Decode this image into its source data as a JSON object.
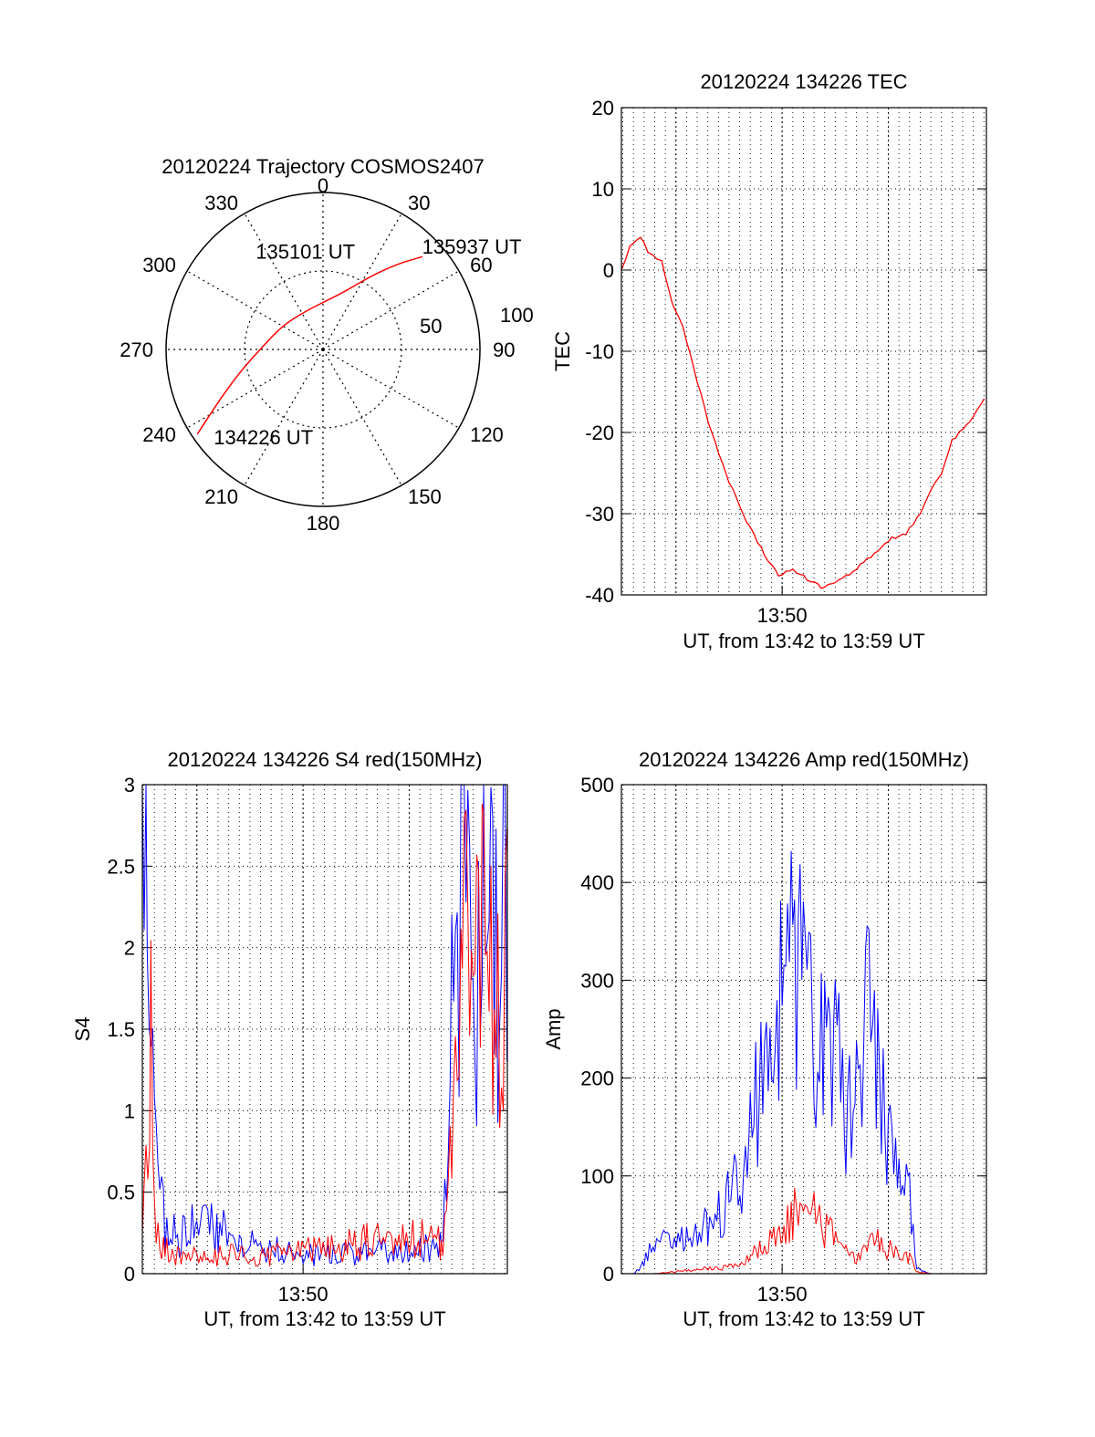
{
  "chart_data": [
    {
      "type": "polar",
      "title": "20120224 Trajectory COSMOS2407",
      "azimuth_labels": [
        "0",
        "30",
        "60",
        "90",
        "120",
        "150",
        "180",
        "210",
        "240",
        "270",
        "300",
        "330"
      ],
      "elevation_ring_labels": [
        "50",
        "100"
      ],
      "elevation_rings": [
        50,
        100
      ],
      "trajectory_color": "#ff0000",
      "trajectory": [
        {
          "az": 236,
          "el": 3
        },
        {
          "az": 240,
          "el": 15
        },
        {
          "az": 246,
          "el": 28
        },
        {
          "az": 256,
          "el": 42
        },
        {
          "az": 272,
          "el": 55
        },
        {
          "az": 300,
          "el": 63
        },
        {
          "az": 332,
          "el": 66
        },
        {
          "az": 0,
          "el": 63
        },
        {
          "az": 20,
          "el": 55
        },
        {
          "az": 33,
          "el": 40
        },
        {
          "az": 41,
          "el": 25
        },
        {
          "az": 47,
          "el": 12
        }
      ],
      "annotations": [
        {
          "text": "134226 UT",
          "az": 229,
          "el": 7
        },
        {
          "text": "135101 UT",
          "az": 349,
          "el": 37
        },
        {
          "text": "135937 UT",
          "az": 46,
          "el": 11
        }
      ]
    },
    {
      "type": "line",
      "title": "20120224 134226 TEC",
      "xlabel": "UT, from 13:42 to 13:59 UT",
      "ylabel": "TEC",
      "ylim": [
        -40,
        20
      ],
      "yticks": [
        20,
        10,
        0,
        -10,
        -20,
        -30,
        -40
      ],
      "xlim": [
        "13:42:26",
        "13:59:37"
      ],
      "xticks": [
        "13:50"
      ],
      "grid": true,
      "series": [
        {
          "color": "#ff0000",
          "x": [
            "13:42:26",
            "13:42:50",
            "13:43:20",
            "13:43:45",
            "13:44:20",
            "13:44:50",
            "13:45:20",
            "13:45:50",
            "13:46:40",
            "13:47:30",
            "13:48:20",
            "13:49:10",
            "13:49:50",
            "13:50:30",
            "13:51:10",
            "13:51:50",
            "13:52:30",
            "13:53:10",
            "13:53:50",
            "13:54:30",
            "13:55:10",
            "13:55:50",
            "13:56:30",
            "13:57:00",
            "13:57:30",
            "13:58:00",
            "13:58:30",
            "13:59:00",
            "13:59:37"
          ],
          "y": [
            0,
            3,
            4,
            2,
            1,
            -4,
            -7,
            -12,
            -20,
            -26,
            -31,
            -35,
            -37.5,
            -37,
            -38,
            -39,
            -38.5,
            -37.5,
            -36,
            -34.5,
            -33,
            -32.5,
            -30,
            -27,
            -25,
            -21,
            -19.5,
            -18,
            -15.5
          ]
        }
      ]
    },
    {
      "type": "line",
      "title": "20120224 134226 S4 red(150MHz)",
      "xlabel": "UT, from 13:42 to 13:59 UT",
      "ylabel": "S4",
      "ylim": [
        0,
        3
      ],
      "yticks": [
        3,
        2.5,
        2,
        1.5,
        1,
        0.5,
        0
      ],
      "xlim": [
        "13:42:26",
        "13:59:37"
      ],
      "xticks": [
        "13:50"
      ],
      "grid": true,
      "series": [
        {
          "color": "#0000ff",
          "x": [
            "13:42:26",
            "13:42:40",
            "13:42:55",
            "13:43:10",
            "13:43:30",
            "13:44:00",
            "13:45:00",
            "13:46:00",
            "13:47:00",
            "13:48:00",
            "13:49:00",
            "13:50:00",
            "13:51:00",
            "13:52:00",
            "13:53:00",
            "13:54:00",
            "13:55:00",
            "13:56:30",
            "13:56:45",
            "13:57:00",
            "13:57:30",
            "13:58:00",
            "13:58:30",
            "13:59:00",
            "13:59:37"
          ],
          "y": [
            3.0,
            3.0,
            1.0,
            0.5,
            0.3,
            0.22,
            0.3,
            0.28,
            0.2,
            0.16,
            0.14,
            0.12,
            0.11,
            0.12,
            0.13,
            0.14,
            0.14,
            0.16,
            0.6,
            1.5,
            2.2,
            1.8,
            2.5,
            2.0,
            2.8
          ]
        },
        {
          "color": "#ff0000",
          "x": [
            "13:42:26",
            "13:42:50",
            "13:43:00",
            "13:43:30",
            "13:44:00",
            "13:45:00",
            "13:46:00",
            "13:47:00",
            "13:48:00",
            "13:49:00",
            "13:50:00",
            "13:51:00",
            "13:52:00",
            "13:53:00",
            "13:54:00",
            "13:55:00",
            "13:56:30",
            "13:56:45",
            "13:57:00",
            "13:57:30",
            "13:58:00",
            "13:58:30",
            "13:59:00",
            "13:59:37"
          ],
          "y": [
            0.3,
            1.4,
            0.3,
            0.15,
            0.12,
            0.1,
            0.11,
            0.12,
            0.1,
            0.13,
            0.15,
            0.14,
            0.17,
            0.2,
            0.22,
            0.23,
            0.2,
            0.4,
            1.2,
            2.0,
            1.6,
            2.3,
            1.5,
            2.5
          ]
        }
      ]
    },
    {
      "type": "line",
      "title": "20120224 134226 Amp red(150MHz)",
      "xlabel": "UT, from 13:42 to 13:59 UT",
      "ylabel": "Amp",
      "ylim": [
        0,
        500
      ],
      "yticks": [
        500,
        400,
        300,
        200,
        100,
        0
      ],
      "xlim": [
        "13:42:26",
        "13:59:37"
      ],
      "xticks": [
        "13:50"
      ],
      "grid": true,
      "series": [
        {
          "color": "#0000ff",
          "x": [
            "13:42:26",
            "13:43:00",
            "13:43:30",
            "13:44:00",
            "13:44:30",
            "13:45:30",
            "13:46:30",
            "13:47:30",
            "13:48:30",
            "13:49:00",
            "13:49:30",
            "13:50:00",
            "13:50:30",
            "13:51:00",
            "13:51:30",
            "13:52:00",
            "13:52:30",
            "13:53:00",
            "13:53:30",
            "13:54:00",
            "13:54:30",
            "13:55:00",
            "13:55:30",
            "13:56:00",
            "13:56:20",
            "13:57:00",
            "13:58:00",
            "13:59:37"
          ],
          "y": [
            0,
            0,
            10,
            40,
            30,
            35,
            50,
            75,
            130,
            200,
            250,
            270,
            330,
            300,
            230,
            210,
            230,
            180,
            200,
            270,
            200,
            130,
            100,
            90,
            5,
            0,
            0,
            0
          ]
        },
        {
          "color": "#ff0000",
          "x": [
            "13:42:26",
            "13:44:00",
            "13:45:00",
            "13:46:00",
            "13:47:00",
            "13:48:00",
            "13:49:00",
            "13:50:00",
            "13:50:30",
            "13:51:00",
            "13:51:30",
            "13:52:00",
            "13:53:00",
            "13:53:30",
            "13:54:00",
            "13:54:30",
            "13:55:00",
            "13:55:30",
            "13:56:00",
            "13:56:20",
            "13:57:00",
            "13:59:37"
          ],
          "y": [
            0,
            0,
            2,
            5,
            5,
            10,
            25,
            45,
            60,
            70,
            60,
            45,
            25,
            15,
            25,
            35,
            25,
            20,
            15,
            2,
            0,
            0
          ]
        }
      ]
    }
  ]
}
